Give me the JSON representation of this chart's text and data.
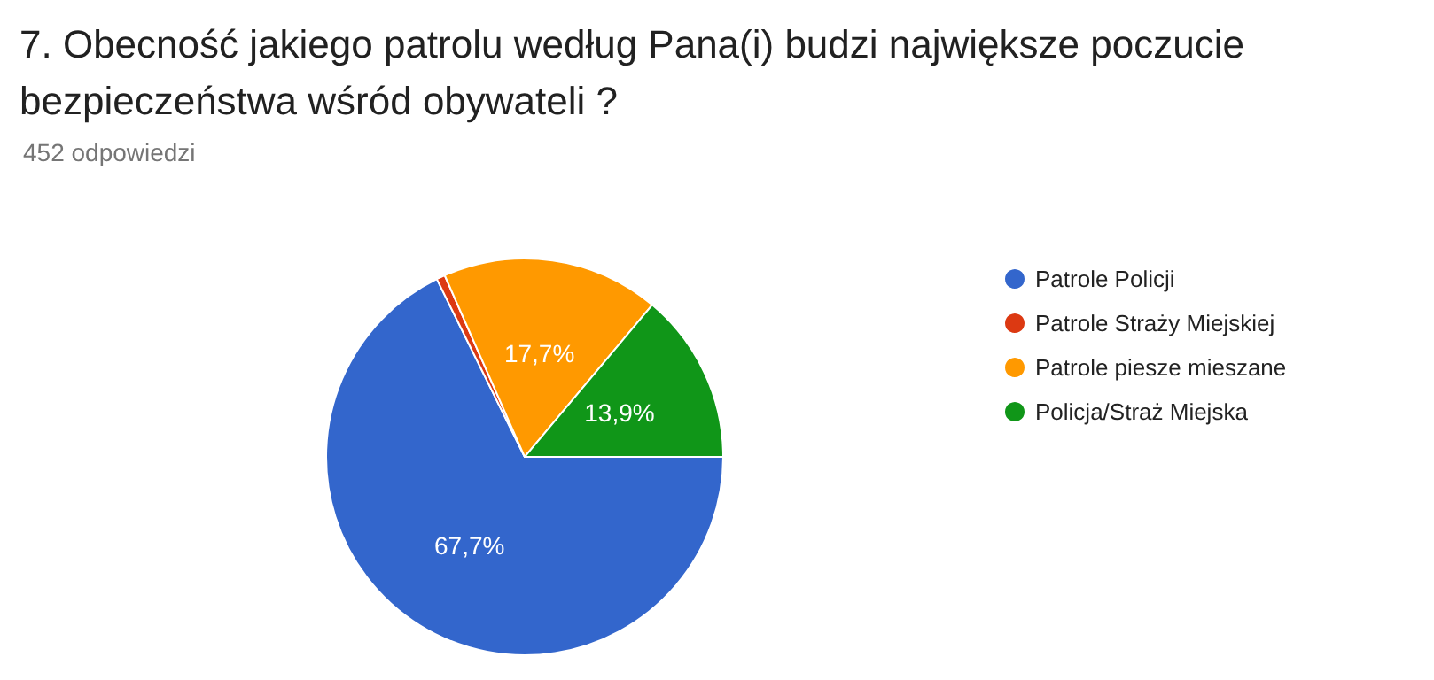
{
  "chart_data": {
    "type": "pie",
    "title": "7. Obecność jakiego patrolu według Pana(i) budzi największe poczucie bezpieczeństwa wśród obywateli ?",
    "subtitle": "452 odpowiedzi",
    "categories": [
      "Patrole Policji",
      "Patrole Straży Miejskiej",
      "Patrole piesze mieszane",
      "Policja/Straż Miejska"
    ],
    "values": [
      67.7,
      0.7,
      17.7,
      13.9
    ],
    "colors": [
      "#3366cc",
      "#dc3912",
      "#ff9900",
      "#109618"
    ],
    "value_labels": [
      "67,7%",
      null,
      "17,7%",
      "13,9%"
    ],
    "legend": "right"
  }
}
